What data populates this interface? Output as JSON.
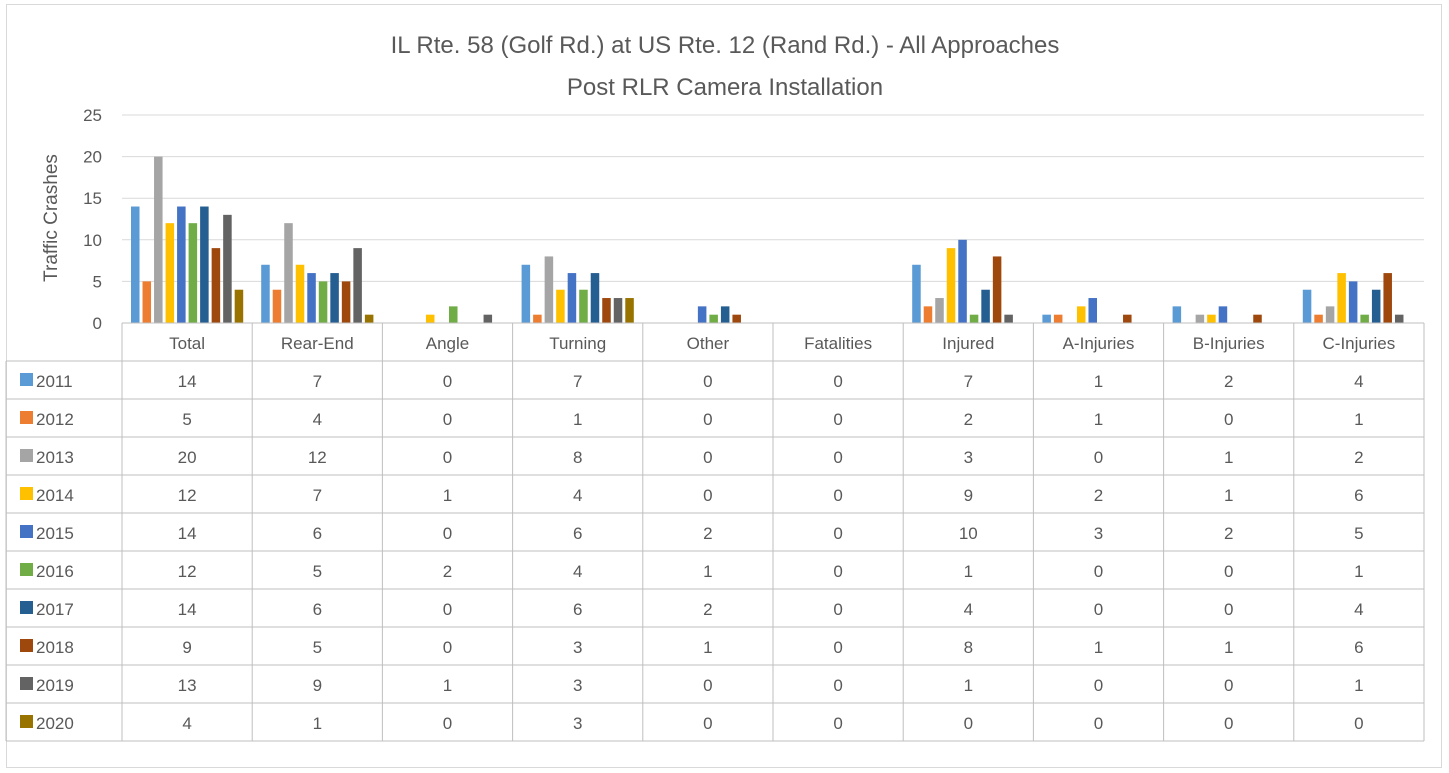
{
  "chart_data": {
    "type": "bar",
    "title": "IL Rte. 58 (Golf Rd.) at US Rte. 12 (Rand Rd.) - All Approaches",
    "subtitle": "Post RLR Camera Installation",
    "ylabel": "Traffic Crashes",
    "xlabel": "",
    "ylim": [
      0,
      25
    ],
    "yticks": [
      0,
      5,
      10,
      15,
      20,
      25
    ],
    "grid": true,
    "legend": "data-table",
    "categories": [
      "Total",
      "Rear-End",
      "Angle",
      "Turning",
      "Other",
      "Fatalities",
      "Injured",
      "A-Injuries",
      "B-Injuries",
      "C-Injuries"
    ],
    "series": [
      {
        "name": "2011",
        "color": "#5b9bd5",
        "values": [
          14,
          7,
          0,
          7,
          0,
          0,
          7,
          1,
          2,
          4
        ]
      },
      {
        "name": "2012",
        "color": "#ed7d31",
        "values": [
          5,
          4,
          0,
          1,
          0,
          0,
          2,
          1,
          0,
          1
        ]
      },
      {
        "name": "2013",
        "color": "#a5a5a5",
        "values": [
          20,
          12,
          0,
          8,
          0,
          0,
          3,
          0,
          1,
          2
        ]
      },
      {
        "name": "2014",
        "color": "#ffc000",
        "values": [
          12,
          7,
          1,
          4,
          0,
          0,
          9,
          2,
          1,
          6
        ]
      },
      {
        "name": "2015",
        "color": "#4472c4",
        "values": [
          14,
          6,
          0,
          6,
          2,
          0,
          10,
          3,
          2,
          5
        ]
      },
      {
        "name": "2016",
        "color": "#70ad47",
        "values": [
          12,
          5,
          2,
          4,
          1,
          0,
          1,
          0,
          0,
          1
        ]
      },
      {
        "name": "2017",
        "color": "#255e91",
        "values": [
          14,
          6,
          0,
          6,
          2,
          0,
          4,
          0,
          0,
          4
        ]
      },
      {
        "name": "2018",
        "color": "#9e480e",
        "values": [
          9,
          5,
          0,
          3,
          1,
          0,
          8,
          1,
          1,
          6
        ]
      },
      {
        "name": "2019",
        "color": "#636363",
        "values": [
          13,
          9,
          1,
          3,
          0,
          0,
          1,
          0,
          0,
          1
        ]
      },
      {
        "name": "2020",
        "color": "#997300",
        "values": [
          4,
          1,
          0,
          3,
          0,
          0,
          0,
          0,
          0,
          0
        ]
      }
    ]
  }
}
